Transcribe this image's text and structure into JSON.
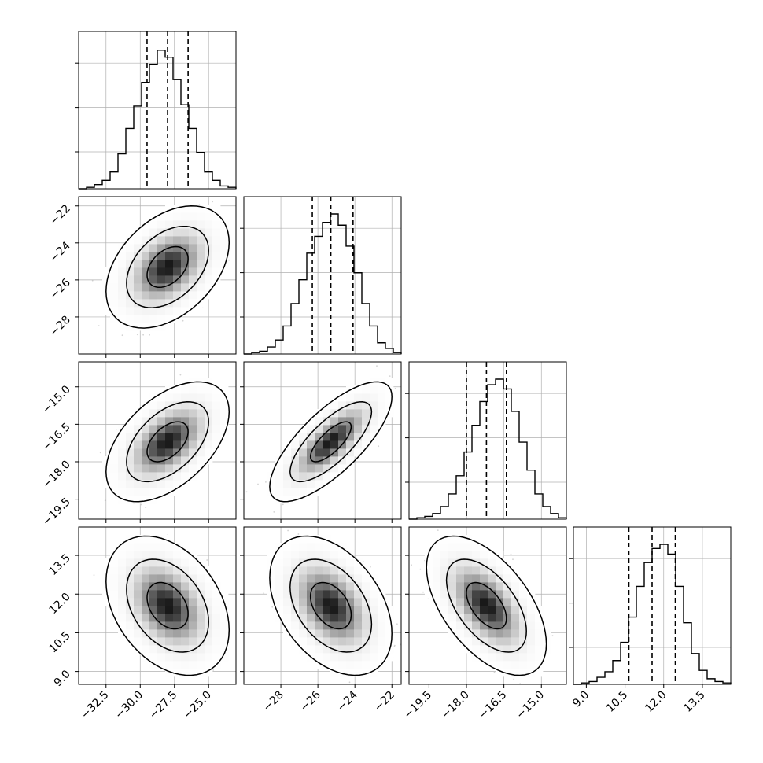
{
  "chart_data": {
    "type": "corner",
    "parameters": [
      {
        "range": [
          -34.5,
          -23.0
        ],
        "ticks": [
          -32.5,
          -30.0,
          -27.5,
          -25.0
        ],
        "tick_labels": [
          "−32.5",
          "−30.0",
          "−27.5",
          "−25.0"
        ],
        "quantiles": [
          -29.5,
          -28.0,
          -26.5
        ],
        "histogram": [
          0,
          0.01,
          0.03,
          0.06,
          0.12,
          0.25,
          0.43,
          0.59,
          0.76,
          0.89,
          0.99,
          0.94,
          0.78,
          0.6,
          0.43,
          0.26,
          0.12,
          0.06,
          0.02,
          0.01
        ]
      },
      {
        "range": [
          -30.0,
          -21.5
        ],
        "ticks": [
          -28,
          -26,
          -24,
          -22
        ],
        "tick_labels": [
          "−28",
          "−26",
          "−24",
          "−22"
        ],
        "quantiles": [
          -26.3,
          -25.3,
          -24.1
        ],
        "histogram": [
          0,
          0.01,
          0.02,
          0.05,
          0.1,
          0.2,
          0.36,
          0.53,
          0.72,
          0.84,
          0.94,
          1.0,
          0.92,
          0.77,
          0.58,
          0.36,
          0.2,
          0.08,
          0.04,
          0.01
        ]
      },
      {
        "range": [
          -20.3,
          -14.0
        ],
        "ticks": [
          -19.5,
          -18.0,
          -16.5,
          -15.0
        ],
        "tick_labels": [
          "−19.5",
          "−18.0",
          "−16.5",
          "−15.0"
        ],
        "quantiles": [
          -18.0,
          -17.2,
          -16.4
        ],
        "histogram": [
          0,
          0.01,
          0.02,
          0.04,
          0.09,
          0.18,
          0.31,
          0.48,
          0.67,
          0.84,
          0.96,
          1.0,
          0.93,
          0.77,
          0.55,
          0.35,
          0.18,
          0.09,
          0.04,
          0.01
        ]
      },
      {
        "range": [
          8.5,
          14.6
        ],
        "ticks": [
          9.0,
          10.5,
          12.0,
          13.5
        ],
        "tick_labels": [
          "9.0",
          "10.5",
          "12.0",
          "13.5"
        ],
        "quantiles": [
          10.65,
          11.55,
          12.45
        ],
        "histogram": [
          0,
          0.01,
          0.02,
          0.05,
          0.09,
          0.17,
          0.3,
          0.48,
          0.7,
          0.87,
          0.97,
          1.0,
          0.93,
          0.7,
          0.44,
          0.22,
          0.1,
          0.04,
          0.02,
          0.01
        ]
      }
    ],
    "correlations": [
      [
        1.0,
        0.4,
        0.5,
        -0.35
      ],
      [
        0.4,
        1.0,
        0.75,
        -0.4
      ],
      [
        0.5,
        0.75,
        1.0,
        -0.55
      ],
      [
        -0.35,
        -0.4,
        -0.55,
        1.0
      ]
    ],
    "grid": true,
    "legend": "none",
    "colors": {
      "points": "#b0b0b0",
      "fill": "#000000",
      "contour": "#000000",
      "grid": "#b0b0b0"
    }
  }
}
